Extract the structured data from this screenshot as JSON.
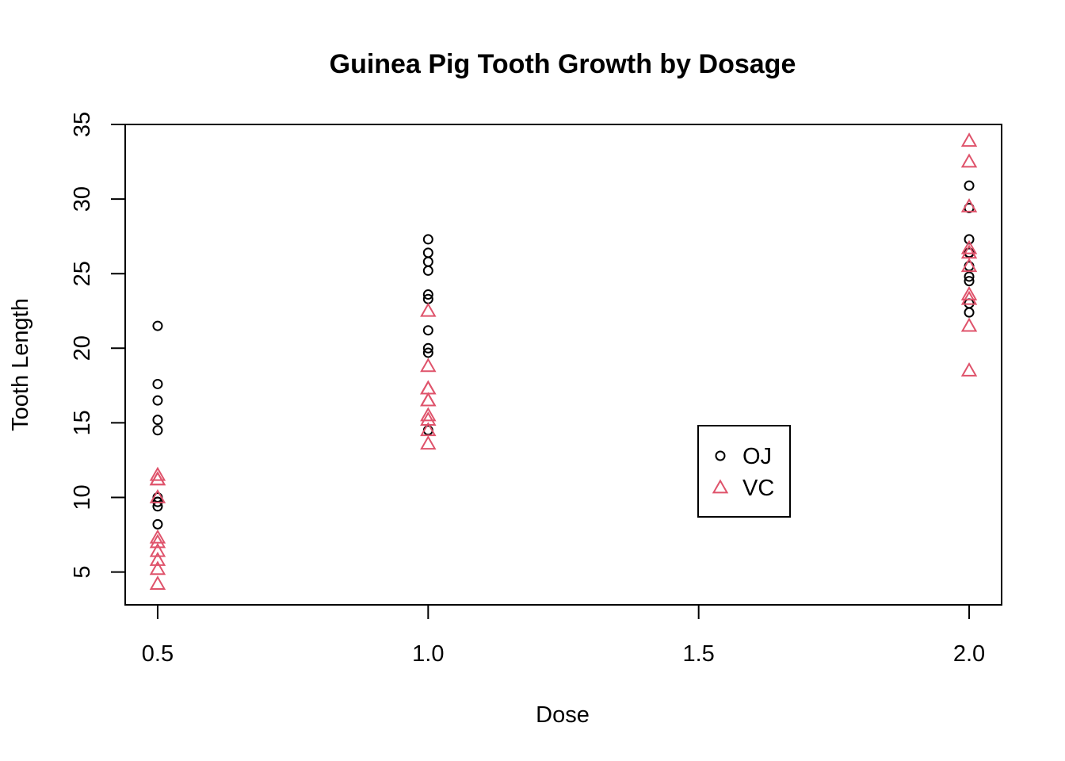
{
  "chart_data": {
    "type": "scatter",
    "title": "Guinea Pig Tooth Growth by Dosage",
    "xlabel": "Dose",
    "ylabel": "Tooth Length",
    "xlim": [
      0.44,
      2.06
    ],
    "ylim": [
      2.8,
      35.0
    ],
    "x_ticks": [
      "0.5",
      "1.0",
      "1.5",
      "2.0"
    ],
    "y_ticks": [
      "5",
      "10",
      "15",
      "20",
      "25",
      "30",
      "35"
    ],
    "legend_position": "center-right",
    "series": [
      {
        "name": "OJ",
        "marker": "circle",
        "color": "#000000",
        "points": [
          [
            0.5,
            15.2
          ],
          [
            0.5,
            21.5
          ],
          [
            0.5,
            17.6
          ],
          [
            0.5,
            9.7
          ],
          [
            0.5,
            14.5
          ],
          [
            0.5,
            10.0
          ],
          [
            0.5,
            8.2
          ],
          [
            0.5,
            9.4
          ],
          [
            0.5,
            16.5
          ],
          [
            0.5,
            9.7
          ],
          [
            1.0,
            19.7
          ],
          [
            1.0,
            23.3
          ],
          [
            1.0,
            23.6
          ],
          [
            1.0,
            26.4
          ],
          [
            1.0,
            20.0
          ],
          [
            1.0,
            25.2
          ],
          [
            1.0,
            25.8
          ],
          [
            1.0,
            21.2
          ],
          [
            1.0,
            14.5
          ],
          [
            1.0,
            27.3
          ],
          [
            2.0,
            25.5
          ],
          [
            2.0,
            26.4
          ],
          [
            2.0,
            22.4
          ],
          [
            2.0,
            24.5
          ],
          [
            2.0,
            24.8
          ],
          [
            2.0,
            30.9
          ],
          [
            2.0,
            26.4
          ],
          [
            2.0,
            27.3
          ],
          [
            2.0,
            29.4
          ],
          [
            2.0,
            23.0
          ]
        ]
      },
      {
        "name": "VC",
        "marker": "triangle",
        "color": "#DF536B",
        "points": [
          [
            0.5,
            4.2
          ],
          [
            0.5,
            11.5
          ],
          [
            0.5,
            7.3
          ],
          [
            0.5,
            5.8
          ],
          [
            0.5,
            6.4
          ],
          [
            0.5,
            10.0
          ],
          [
            0.5,
            11.2
          ],
          [
            0.5,
            11.2
          ],
          [
            0.5,
            5.2
          ],
          [
            0.5,
            7.0
          ],
          [
            1.0,
            16.5
          ],
          [
            1.0,
            16.5
          ],
          [
            1.0,
            15.2
          ],
          [
            1.0,
            17.3
          ],
          [
            1.0,
            22.5
          ],
          [
            1.0,
            17.3
          ],
          [
            1.0,
            13.6
          ],
          [
            1.0,
            14.5
          ],
          [
            1.0,
            18.8
          ],
          [
            1.0,
            15.5
          ],
          [
            2.0,
            23.6
          ],
          [
            2.0,
            18.5
          ],
          [
            2.0,
            33.9
          ],
          [
            2.0,
            25.5
          ],
          [
            2.0,
            26.4
          ],
          [
            2.0,
            32.5
          ],
          [
            2.0,
            26.7
          ],
          [
            2.0,
            21.5
          ],
          [
            2.0,
            23.3
          ],
          [
            2.0,
            29.5
          ]
        ]
      }
    ]
  }
}
